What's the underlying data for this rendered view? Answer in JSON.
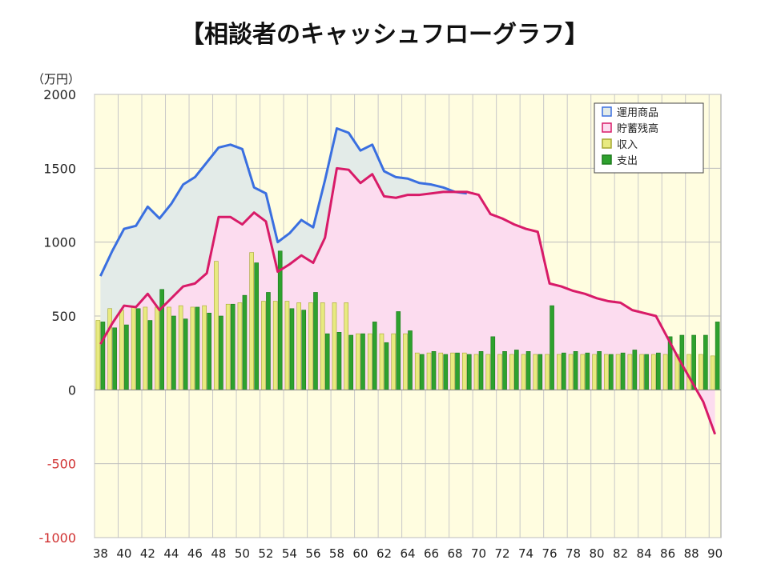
{
  "title": "【相談者のキャッシュフローグラフ】",
  "unit_label": "（万円）",
  "chart_data": {
    "type": "bar+line",
    "x": [
      38,
      39,
      40,
      41,
      42,
      43,
      44,
      45,
      46,
      47,
      48,
      49,
      50,
      51,
      52,
      53,
      54,
      55,
      56,
      57,
      58,
      59,
      60,
      61,
      62,
      63,
      64,
      65,
      66,
      67,
      68,
      69,
      70,
      71,
      72,
      73,
      74,
      75,
      76,
      77,
      78,
      79,
      80,
      81,
      82,
      83,
      84,
      85,
      86,
      87,
      88,
      89,
      90
    ],
    "x_tick_labels": [
      "38",
      "40",
      "42",
      "44",
      "46",
      "48",
      "50",
      "52",
      "54",
      "56",
      "58",
      "60",
      "62",
      "64",
      "66",
      "68",
      "70",
      "72",
      "74",
      "76",
      "78",
      "80",
      "82",
      "84",
      "86",
      "88",
      "90"
    ],
    "ylim": [
      -1000,
      2000
    ],
    "y_tick_labels": [
      "2000",
      "1500",
      "1000",
      "500",
      "0",
      "-500",
      "-1000"
    ],
    "negative_tick_color": "#d03030",
    "grid": true,
    "legend_position": "top-right",
    "plot_background": "#fffde0",
    "series": [
      {
        "name": "運用商品",
        "type": "area-line",
        "color": "#3a6fe0",
        "fill": "#e3ebe8",
        "values": [
          770,
          940,
          1090,
          1110,
          1240,
          1160,
          1260,
          1390,
          1440,
          1540,
          1640,
          1660,
          1630,
          1370,
          1330,
          1000,
          1060,
          1150,
          1100,
          1420,
          1770,
          1740,
          1620,
          1660,
          1480,
          1440,
          1430,
          1400,
          1390,
          1370,
          1340,
          1330,
          null,
          null,
          null,
          null,
          null,
          null,
          null,
          null,
          null,
          null,
          null,
          null,
          null,
          null,
          null,
          null,
          null,
          null,
          null,
          null,
          null
        ]
      },
      {
        "name": "貯蓄残高",
        "type": "area-line",
        "color": "#d81b68",
        "fill": "#fcdcef",
        "values": [
          310,
          450,
          570,
          560,
          650,
          540,
          620,
          700,
          720,
          790,
          1170,
          1170,
          1120,
          1200,
          1140,
          800,
          850,
          910,
          860,
          1030,
          1500,
          1490,
          1400,
          1460,
          1310,
          1300,
          1320,
          1320,
          1330,
          1340,
          1340,
          1340,
          1320,
          1190,
          1160,
          1120,
          1090,
          1070,
          720,
          700,
          670,
          650,
          620,
          600,
          590,
          540,
          520,
          500,
          350,
          200,
          60,
          -80,
          -300
        ]
      },
      {
        "name": "収入",
        "type": "bar",
        "color": "#e8ea80",
        "values": [
          470,
          550,
          540,
          560,
          560,
          560,
          560,
          570,
          560,
          570,
          870,
          580,
          590,
          930,
          600,
          600,
          600,
          590,
          590,
          590,
          590,
          590,
          380,
          380,
          380,
          380,
          380,
          250,
          250,
          250,
          250,
          250,
          240,
          240,
          240,
          240,
          240,
          240,
          240,
          240,
          240,
          240,
          240,
          240,
          240,
          240,
          240,
          240,
          240,
          240,
          240,
          240,
          230
        ]
      },
      {
        "name": "支出",
        "type": "bar",
        "color": "#2ea12e",
        "values": [
          460,
          420,
          440,
          550,
          470,
          680,
          500,
          480,
          560,
          520,
          500,
          580,
          640,
          860,
          660,
          940,
          550,
          540,
          660,
          380,
          390,
          370,
          380,
          460,
          320,
          530,
          400,
          240,
          260,
          240,
          250,
          240,
          260,
          360,
          260,
          270,
          260,
          240,
          570,
          250,
          260,
          250,
          260,
          240,
          250,
          270,
          240,
          250,
          360,
          370,
          370,
          370,
          460
        ]
      }
    ]
  }
}
